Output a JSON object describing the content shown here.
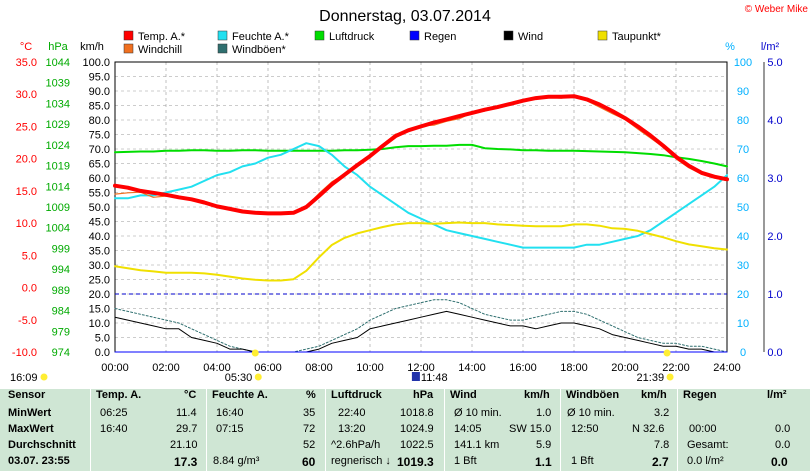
{
  "chart_data": {
    "type": "line",
    "title": "Donnerstag, 03.07.2014",
    "watermark": "© Weber Mike",
    "x": [
      "00:00",
      "00:30",
      "01:00",
      "01:30",
      "02:00",
      "02:30",
      "03:00",
      "03:30",
      "04:00",
      "04:30",
      "05:00",
      "05:30",
      "06:00",
      "06:30",
      "07:00",
      "07:30",
      "08:00",
      "08:30",
      "09:00",
      "09:30",
      "10:00",
      "10:30",
      "11:00",
      "11:30",
      "12:00",
      "12:30",
      "13:00",
      "13:30",
      "14:00",
      "14:30",
      "15:00",
      "15:30",
      "16:00",
      "16:30",
      "17:00",
      "17:30",
      "18:00",
      "18:30",
      "19:00",
      "19:30",
      "20:00",
      "20:30",
      "21:00",
      "21:30",
      "22:00",
      "22:30",
      "23:00",
      "23:30",
      "24:00"
    ],
    "x_ticks": [
      "00:00",
      "02:00",
      "04:00",
      "06:00",
      "08:00",
      "10:00",
      "12:00",
      "14:00",
      "16:00",
      "18:00",
      "20:00",
      "22:00",
      "24:00"
    ],
    "axes": {
      "temp_c": {
        "label": "°C",
        "color": "#ff0000",
        "ticks": [
          "35.0",
          "30.0",
          "25.0",
          "20.0",
          "15.0",
          "10.0",
          "5.0",
          "0.0",
          "-5.0",
          "-10.0"
        ],
        "range": [
          -10,
          35
        ]
      },
      "pressure_hpa": {
        "label": "hPa",
        "color": "#00aa00",
        "ticks": [
          "1044",
          "1039",
          "1034",
          "1029",
          "1024",
          "1019",
          "1014",
          "1009",
          "1004",
          "999",
          "994",
          "989",
          "984",
          "979",
          "974"
        ],
        "range": [
          974,
          1044
        ]
      },
      "wind_kmh": {
        "label": "km/h",
        "color": "#000000",
        "ticks": [
          "100.0",
          "95.0",
          "90.0",
          "85.0",
          "80.0",
          "75.0",
          "70.0",
          "65.0",
          "60.0",
          "55.0",
          "50.0",
          "45.0",
          "40.0",
          "35.0",
          "30.0",
          "25.0",
          "20.0",
          "15.0",
          "10.0",
          "5.0",
          "0.0"
        ],
        "range": [
          0,
          100
        ]
      },
      "humidity_pct": {
        "label": "%",
        "color": "#00b0ff",
        "ticks": [
          "100",
          "90",
          "80",
          "70",
          "60",
          "50",
          "40",
          "30",
          "20",
          "10",
          "0"
        ],
        "range": [
          0,
          100
        ]
      },
      "rain_lm2": {
        "label": "l/m²",
        "color": "#0000cc",
        "ticks": [
          "5.0",
          "4.0",
          "3.0",
          "2.0",
          "1.0",
          "0.0"
        ],
        "range": [
          0,
          5
        ]
      }
    },
    "legend": [
      {
        "name": "Temp. A.*",
        "color": "#ff0000"
      },
      {
        "name": "Feuchte A.*",
        "color": "#22e0f0"
      },
      {
        "name": "Luftdruck",
        "color": "#00dd00"
      },
      {
        "name": "Regen",
        "color": "#0000ff"
      },
      {
        "name": "Wind",
        "color": "#000000"
      },
      {
        "name": "Taupunkt*",
        "color": "#f0e000"
      },
      {
        "name": "Windchill",
        "color": "#f07020"
      },
      {
        "name": "Windböen*",
        "color": "#2f6f6f"
      }
    ],
    "series": [
      {
        "name": "Temp. A.*",
        "axis": "temp_c",
        "values": [
          15.8,
          15.5,
          15.0,
          14.7,
          14.4,
          14.0,
          13.7,
          13.2,
          12.6,
          12.2,
          11.8,
          11.6,
          11.5,
          11.5,
          11.6,
          12.5,
          14.2,
          16.0,
          17.5,
          19.0,
          20.4,
          22.0,
          23.5,
          24.4,
          25.0,
          25.6,
          26.1,
          26.6,
          27.1,
          27.6,
          28.0,
          28.5,
          29.0,
          29.4,
          29.6,
          29.6,
          29.7,
          29.2,
          28.4,
          27.4,
          26.3,
          25.0,
          23.6,
          22.0,
          20.3,
          18.9,
          17.8,
          17.2,
          16.8
        ]
      },
      {
        "name": "Windchill",
        "axis": "temp_c",
        "values": [
          14.5,
          14.7,
          14.8,
          14.0,
          14.2,
          14.0,
          13.7,
          13.2,
          12.6,
          12.2,
          11.8,
          11.6,
          11.5,
          11.5,
          11.6,
          12.6,
          14.6,
          16.4,
          17.6,
          19.2,
          20.3,
          22.2,
          23.8,
          24.2,
          25.1,
          25.2,
          25.8,
          26.2,
          27.1,
          27.4,
          28.1,
          28.6,
          29.1,
          29.3,
          29.5,
          29.4,
          29.7,
          29.0,
          28.0,
          27.0,
          26.1,
          24.6,
          23.2,
          21.8,
          20.0,
          18.6,
          17.6,
          17.0,
          16.6
        ]
      },
      {
        "name": "Luftdruck",
        "axis": "pressure_hpa",
        "values": [
          1022.2,
          1022.3,
          1022.4,
          1022.4,
          1022.6,
          1022.6,
          1022.7,
          1022.7,
          1022.6,
          1022.6,
          1022.7,
          1022.7,
          1022.6,
          1022.6,
          1022.6,
          1022.6,
          1022.6,
          1022.6,
          1022.7,
          1022.7,
          1022.8,
          1023.0,
          1023.4,
          1023.7,
          1023.7,
          1023.8,
          1023.8,
          1024.0,
          1024.0,
          1023.2,
          1023.0,
          1022.9,
          1022.7,
          1022.7,
          1022.6,
          1022.6,
          1022.6,
          1022.5,
          1022.4,
          1022.3,
          1022.2,
          1022.0,
          1021.8,
          1021.5,
          1021.0,
          1020.6,
          1020.1,
          1019.5,
          1018.8
        ]
      },
      {
        "name": "Feuchte A.*",
        "axis": "humidity_pct",
        "values": [
          53,
          53,
          54,
          54,
          55,
          56,
          57,
          59,
          61,
          62,
          64,
          65,
          67,
          68,
          70,
          72,
          71,
          68,
          64,
          61,
          57,
          54,
          51,
          48,
          46,
          44,
          42,
          41,
          40,
          39,
          38,
          37,
          36,
          36,
          36,
          36,
          36,
          37,
          37,
          38,
          39,
          40,
          42,
          45,
          48,
          51,
          54,
          57,
          61
        ]
      },
      {
        "name": "Taupunkt*",
        "axis": "temp_c",
        "values": [
          3.3,
          3.0,
          2.7,
          2.5,
          2.3,
          2.3,
          2.3,
          2.2,
          2.0,
          1.7,
          1.4,
          1.2,
          1.1,
          1.1,
          1.3,
          2.6,
          4.7,
          6.6,
          7.7,
          8.4,
          8.9,
          9.4,
          9.8,
          10.0,
          10.0,
          9.9,
          10.0,
          10.1,
          10.0,
          10.0,
          9.8,
          9.7,
          9.6,
          9.5,
          9.5,
          9.5,
          9.8,
          9.8,
          9.6,
          9.2,
          9.1,
          8.8,
          8.3,
          7.8,
          7.2,
          6.7,
          6.4,
          6.1,
          5.9
        ]
      },
      {
        "name": "Wind",
        "axis": "wind_kmh",
        "values": [
          12,
          11,
          10,
          9,
          8,
          8,
          5,
          4,
          3,
          1,
          1,
          0,
          0,
          0,
          0,
          0,
          1,
          3,
          4,
          5,
          8,
          9,
          10,
          11,
          12,
          13,
          14,
          13,
          12,
          11,
          10,
          9,
          9,
          8,
          9,
          10,
          10,
          9,
          8,
          6,
          5,
          4,
          3,
          2,
          2,
          1,
          1,
          0,
          0
        ]
      },
      {
        "name": "Windböen*",
        "axis": "wind_kmh",
        "values": [
          15,
          14,
          13,
          12,
          11,
          10,
          8,
          6,
          4,
          2,
          1,
          0,
          0,
          0,
          0,
          1,
          2,
          4,
          6,
          8,
          11,
          13,
          15,
          16,
          17,
          18,
          18,
          17,
          15,
          13,
          12,
          11,
          11,
          12,
          13,
          14,
          14,
          13,
          11,
          9,
          7,
          5,
          4,
          3,
          3,
          2,
          2,
          1,
          0
        ]
      },
      {
        "name": "Regen",
        "axis": "rain_lm2",
        "values": [
          0,
          0,
          0,
          0,
          0,
          0,
          0,
          0,
          0,
          0,
          0,
          0,
          0,
          0,
          0,
          0,
          0,
          0,
          0,
          0,
          0,
          0,
          0,
          0,
          0,
          0,
          0,
          0,
          0,
          0,
          0,
          0,
          0,
          0,
          0,
          0,
          0,
          0,
          0,
          0,
          0,
          0,
          0,
          0,
          0,
          0,
          0,
          0,
          0
        ]
      }
    ],
    "markers": {
      "sunrise": "05:30",
      "noon": "11:48",
      "sunset": "21:39",
      "left_time": "16:09"
    },
    "grid": true
  },
  "table": {
    "headers": [
      {
        "a": "Sensor"
      },
      {
        "a": "Temp. A.",
        "b": "°C"
      },
      {
        "a": "Feuchte A.",
        "b": "%"
      },
      {
        "a": "Luftdruck",
        "b": "hPa"
      },
      {
        "a": "Wind",
        "b": "km/h"
      },
      {
        "a": "Windböen",
        "b": "km/h"
      },
      {
        "a": "Regen",
        "b": "l/m²"
      }
    ],
    "rows": [
      {
        "label": "MinWert",
        "c": [
          [
            "06:25",
            "11.4"
          ],
          [
            "16:40",
            "35"
          ],
          [
            "22:40",
            "1018.8"
          ],
          [
            "Ø 10 min.",
            "1.0"
          ],
          [
            "Ø 10 min.",
            "3.2"
          ],
          [
            "",
            ""
          ]
        ]
      },
      {
        "label": "MaxWert",
        "c": [
          [
            "16:40",
            "29.7"
          ],
          [
            "07:15",
            "72"
          ],
          [
            "13:20",
            "1024.9"
          ],
          [
            "14:05",
            "SW 15.0"
          ],
          [
            "12:50",
            "N 32.6"
          ],
          [
            "00:00",
            "0.0"
          ]
        ]
      },
      {
        "label": "Durchschnitt",
        "c": [
          [
            "",
            "21.10"
          ],
          [
            "",
            "52"
          ],
          [
            "^2.6hPa/h",
            "1022.5"
          ],
          [
            "141.1 km",
            "5.9"
          ],
          [
            "",
            "7.8"
          ],
          [
            "Gesamt:",
            "0.0"
          ]
        ]
      },
      {
        "label": "03.07.  23:55",
        "c": [
          [
            "",
            "17.3"
          ],
          [
            "8.84 g/m³",
            "60"
          ],
          [
            "regnerisch  ↓",
            "1019.3"
          ],
          [
            "1 Bft",
            "1.1"
          ],
          [
            "1 Bft",
            "2.7"
          ],
          [
            "0.0 l/m²",
            "0.0"
          ]
        ]
      }
    ]
  }
}
